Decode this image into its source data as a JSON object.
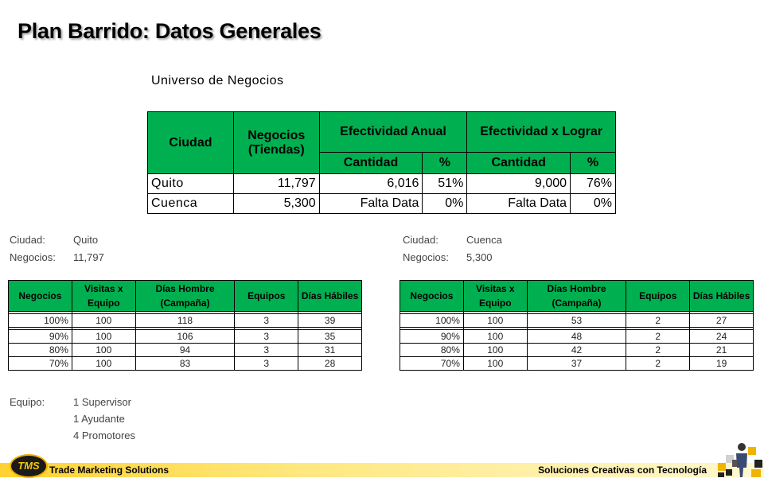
{
  "title": "Plan Barrido: Datos Generales",
  "subtitle": "Universo de Negocios",
  "main_table": {
    "headers": {
      "ciudad": "Ciudad",
      "negocios": "Negocios (Tiendas)",
      "efectividad_anual": "Efectividad Anual",
      "efectividad_lograr": "Efectividad x Lograr",
      "cantidad": "Cantidad",
      "percent": "%"
    },
    "rows": [
      {
        "ciudad": "Quito",
        "negocios": "11,797",
        "cant1": "6,016",
        "pct1": "51%",
        "cant2": "9,000",
        "pct2": "76%"
      },
      {
        "ciudad": "Cuenca",
        "negocios": "5,300",
        "cant1": "Falta Data",
        "pct1": "0%",
        "cant2": "Falta Data",
        "pct2": "0%"
      }
    ]
  },
  "left": {
    "ciudad_label": "Ciudad:",
    "ciudad": "Quito",
    "negocios_label": "Negocios:",
    "negocios": "11,797",
    "headers": [
      "Negocios",
      "Visitas x Equipo",
      "Días Hombre (Campaña)",
      "Equipos",
      "Días Hábiles"
    ],
    "rows": [
      [
        "100%",
        "100",
        "118",
        "3",
        "39"
      ],
      [
        "90%",
        "100",
        "106",
        "3",
        "35"
      ],
      [
        "80%",
        "100",
        "94",
        "3",
        "31"
      ],
      [
        "70%",
        "100",
        "83",
        "3",
        "28"
      ]
    ]
  },
  "right": {
    "ciudad_label": "Ciudad:",
    "ciudad": "Cuenca",
    "negocios_label": "Negocios:",
    "negocios": "5,300",
    "headers": [
      "Negocios",
      "Visitas x Equipo",
      "Días Hombre (Campaña)",
      "Equipos",
      "Días Hábiles"
    ],
    "rows": [
      [
        "100%",
        "100",
        "53",
        "2",
        "27"
      ],
      [
        "90%",
        "100",
        "48",
        "2",
        "24"
      ],
      [
        "80%",
        "100",
        "42",
        "2",
        "21"
      ],
      [
        "70%",
        "100",
        "37",
        "2",
        "19"
      ]
    ]
  },
  "equipo": {
    "label": "Equipo:",
    "items": [
      "1 Supervisor",
      "1 Ayudante",
      "4 Promotores"
    ]
  },
  "footer": {
    "logo": "TMS",
    "left": "Trade Marketing Solutions",
    "right": "Soluciones Creativas con Tecnología"
  },
  "colors": {
    "header_green": "#00b050",
    "footer_yellow": "#ffd230"
  }
}
